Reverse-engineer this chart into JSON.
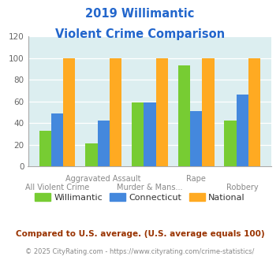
{
  "title_line1": "2019 Willimantic",
  "title_line2": "Violent Crime Comparison",
  "willimantic": [
    33,
    21,
    59,
    93,
    42
  ],
  "connecticut": [
    49,
    42,
    59,
    51,
    66
  ],
  "national": [
    100,
    100,
    100,
    100,
    100
  ],
  "colors": {
    "willimantic": "#77cc33",
    "connecticut": "#4488dd",
    "national": "#ffaa22"
  },
  "ylim": [
    0,
    120
  ],
  "yticks": [
    0,
    20,
    40,
    60,
    80,
    100,
    120
  ],
  "title_color": "#2266cc",
  "bg_color": "#dceef0",
  "footnote1": "Compared to U.S. average. (U.S. average equals 100)",
  "footnote2": "© 2025 CityRating.com - https://www.cityrating.com/crime-statistics/",
  "footnote1_color": "#993300",
  "footnote2_color": "#888888",
  "top_row_labels": [
    "",
    "Aggravated Assault",
    "",
    "Rape",
    ""
  ],
  "bottom_row_labels": [
    "All Violent Crime",
    "",
    "Murder & Mans...",
    "",
    "Robbery"
  ]
}
